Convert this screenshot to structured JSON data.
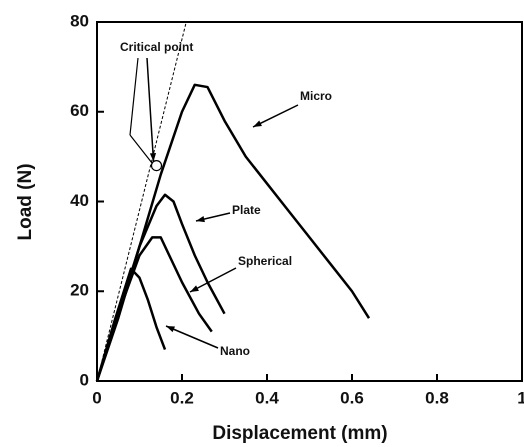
{
  "chart_data": {
    "type": "line",
    "x_label": "Displacement (mm)",
    "y_label": "Load (N)",
    "xlim": [
      0,
      1
    ],
    "ylim": [
      0,
      80
    ],
    "xticks": [
      0,
      0.2,
      0.4,
      0.6,
      0.8,
      1
    ],
    "yticks": [
      0,
      20,
      40,
      60,
      80
    ],
    "series": [
      {
        "name": "Micro",
        "color": "#000000",
        "x": [
          0,
          0.05,
          0.1,
          0.15,
          0.2,
          0.23,
          0.26,
          0.3,
          0.35,
          0.4,
          0.45,
          0.5,
          0.55,
          0.6,
          0.64
        ],
        "values": [
          0,
          14,
          30,
          46,
          60,
          66,
          65.5,
          58,
          50,
          44,
          38,
          32,
          26,
          20,
          14
        ]
      },
      {
        "name": "Plate",
        "color": "#000000",
        "x": [
          0,
          0.05,
          0.1,
          0.14,
          0.16,
          0.18,
          0.2,
          0.23,
          0.26,
          0.3
        ],
        "values": [
          0,
          15,
          30,
          39,
          41.5,
          40,
          35,
          28,
          22,
          15
        ]
      },
      {
        "name": "Spherical",
        "color": "#000000",
        "x": [
          0,
          0.05,
          0.1,
          0.13,
          0.15,
          0.17,
          0.2,
          0.24,
          0.27
        ],
        "values": [
          0,
          15,
          28,
          32,
          32,
          28,
          22,
          15,
          11
        ]
      },
      {
        "name": "Nano",
        "color": "#000000",
        "x": [
          0,
          0.04,
          0.08,
          0.1,
          0.12,
          0.14,
          0.16
        ],
        "values": [
          0,
          13,
          25,
          23,
          18,
          12,
          7
        ]
      }
    ],
    "tangent": {
      "x": [
        0,
        0.21
      ],
      "values": [
        0,
        80
      ]
    },
    "critical_point": {
      "name": "Critical point",
      "x": 0.14,
      "y": 48
    }
  }
}
